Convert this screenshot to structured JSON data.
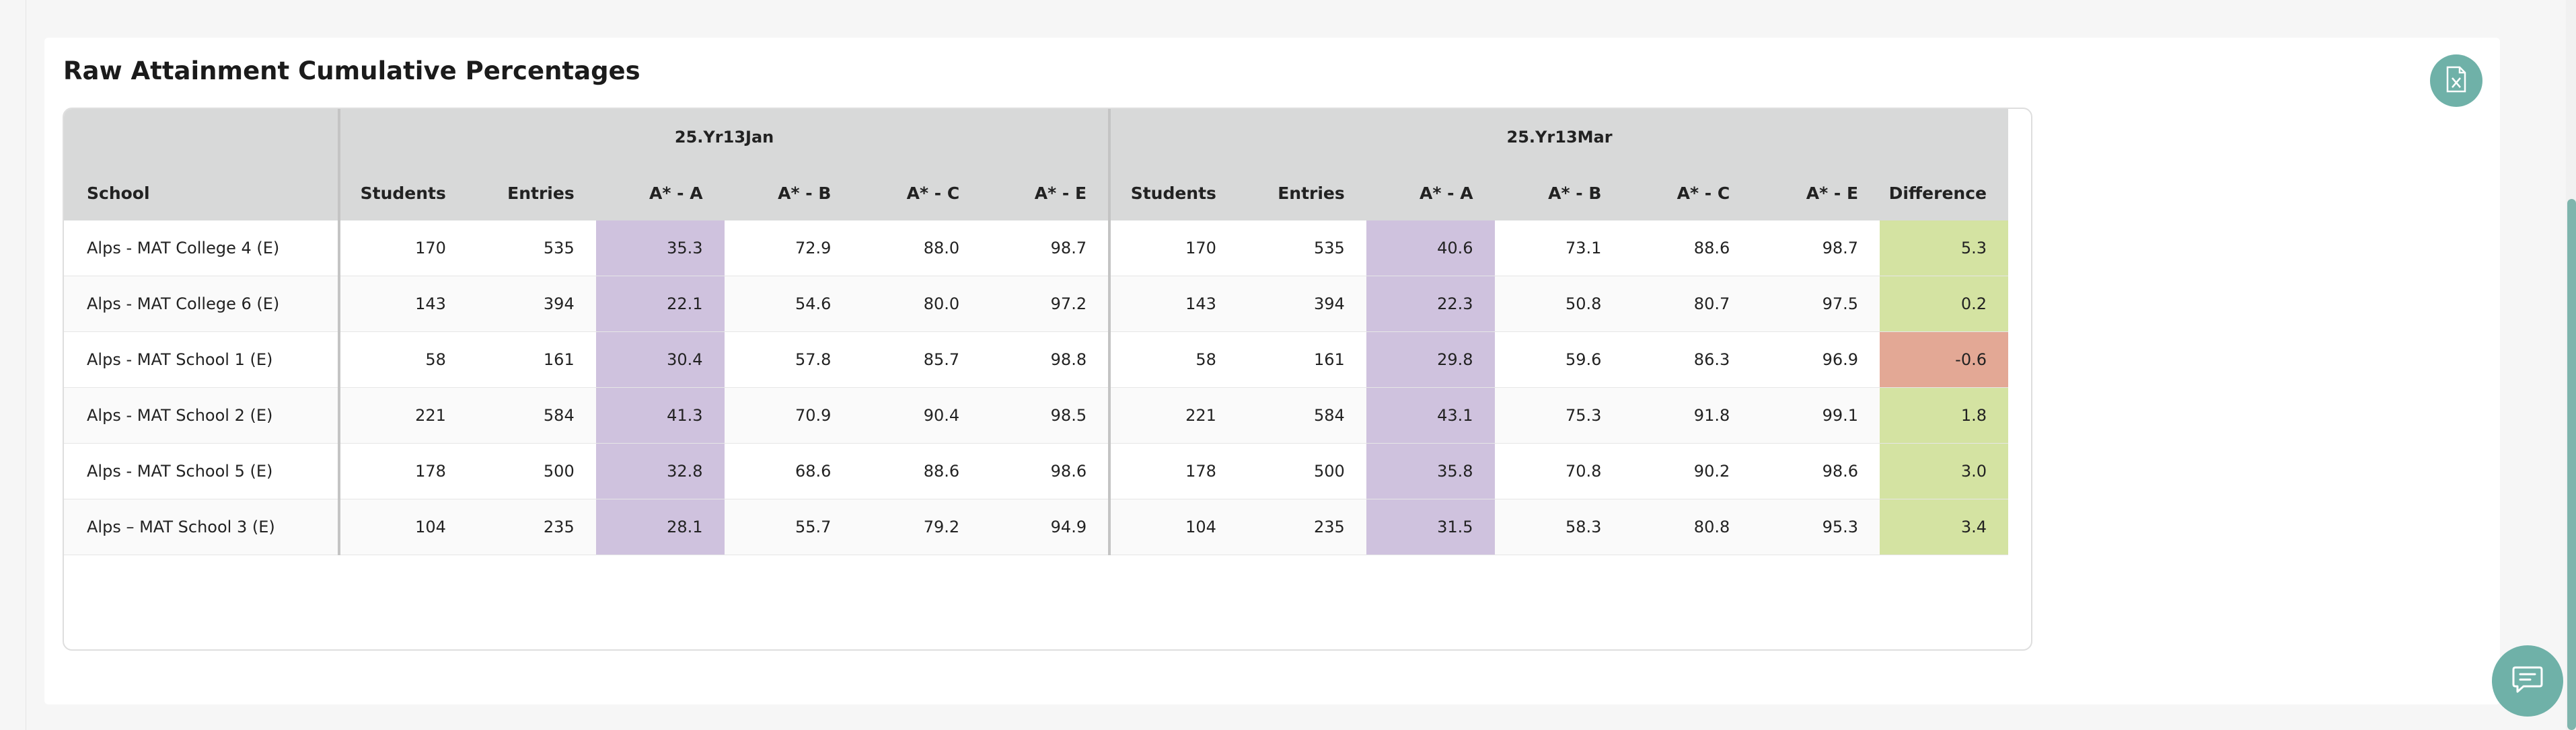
{
  "card": {
    "title": "Raw Attainment Cumulative Percentages"
  },
  "icons": {
    "export": "excel-file-icon",
    "chat": "chat-icon"
  },
  "colors": {
    "accent": "#6fb1a8",
    "highlight_a": "#cfc2de",
    "difference_positive": "#d4e3a2",
    "difference_negative": "#e3a895",
    "header_bg": "#d8d9d9"
  },
  "table": {
    "groups": [
      "25.Yr13Jan",
      "25.Yr13Mar"
    ],
    "columns": {
      "school": "School",
      "students": "Students",
      "entries": "Entries",
      "a_star_a": "A* - A",
      "a_star_b": "A* - B",
      "a_star_c": "A* - C",
      "a_star_e": "A* - E",
      "difference": "Difference"
    },
    "rows": [
      {
        "school": "Alps - MAT College 4 (E)",
        "jan": [
          "170",
          "535",
          "35.3",
          "72.9",
          "88.0",
          "98.7"
        ],
        "mar": [
          "170",
          "535",
          "40.6",
          "73.1",
          "88.6",
          "98.7"
        ],
        "difference": "5.3"
      },
      {
        "school": "Alps - MAT College 6 (E)",
        "jan": [
          "143",
          "394",
          "22.1",
          "54.6",
          "80.0",
          "97.2"
        ],
        "mar": [
          "143",
          "394",
          "22.3",
          "50.8",
          "80.7",
          "97.5"
        ],
        "difference": "0.2"
      },
      {
        "school": "Alps - MAT School 1 (E)",
        "jan": [
          "58",
          "161",
          "30.4",
          "57.8",
          "85.7",
          "98.8"
        ],
        "mar": [
          "58",
          "161",
          "29.8",
          "59.6",
          "86.3",
          "96.9"
        ],
        "difference": "-0.6"
      },
      {
        "school": "Alps - MAT School 2 (E)",
        "jan": [
          "221",
          "584",
          "41.3",
          "70.9",
          "90.4",
          "98.5"
        ],
        "mar": [
          "221",
          "584",
          "43.1",
          "75.3",
          "91.8",
          "99.1"
        ],
        "difference": "1.8"
      },
      {
        "school": "Alps - MAT School 5 (E)",
        "jan": [
          "178",
          "500",
          "32.8",
          "68.6",
          "88.6",
          "98.6"
        ],
        "mar": [
          "178",
          "500",
          "35.8",
          "70.8",
          "90.2",
          "98.6"
        ],
        "difference": "3.0"
      },
      {
        "school": "Alps – MAT School 3 (E)",
        "jan": [
          "104",
          "235",
          "28.1",
          "55.7",
          "79.2",
          "94.9"
        ],
        "mar": [
          "104",
          "235",
          "31.5",
          "58.3",
          "80.8",
          "95.3"
        ],
        "difference": "3.4"
      }
    ]
  }
}
